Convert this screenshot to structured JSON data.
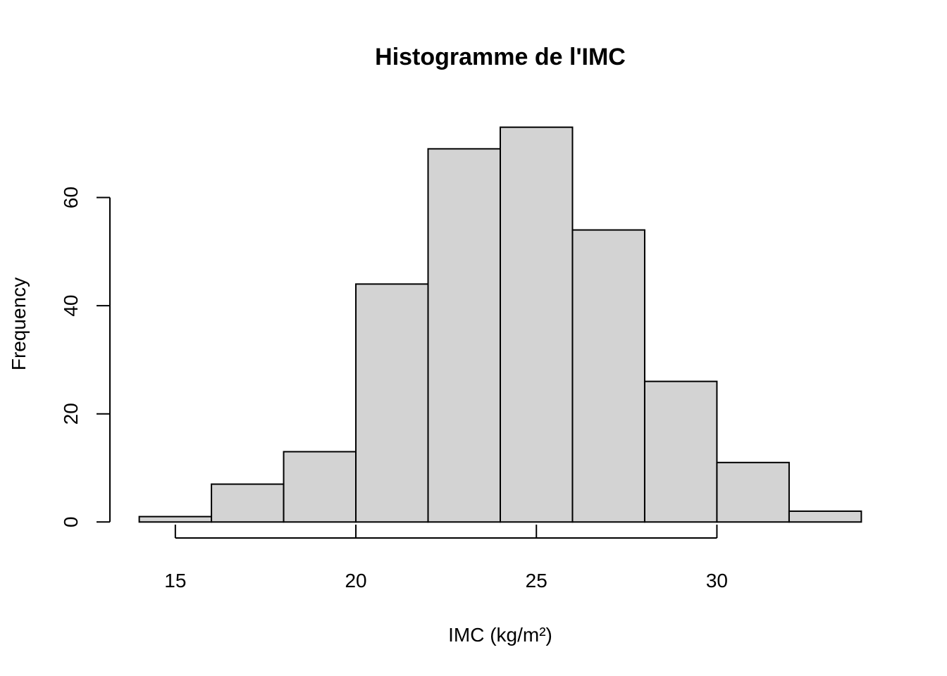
{
  "chart_data": {
    "type": "bar",
    "title": "Histogramme de l'IMC",
    "xlabel": "IMC (kg/m²)",
    "ylabel": "Frequency",
    "bins": [
      {
        "from": 14,
        "to": 16,
        "count": 1
      },
      {
        "from": 16,
        "to": 18,
        "count": 7
      },
      {
        "from": 18,
        "to": 20,
        "count": 13
      },
      {
        "from": 20,
        "to": 22,
        "count": 44
      },
      {
        "from": 22,
        "to": 24,
        "count": 69
      },
      {
        "from": 24,
        "to": 26,
        "count": 73
      },
      {
        "from": 26,
        "to": 28,
        "count": 54
      },
      {
        "from": 28,
        "to": 30,
        "count": 26
      },
      {
        "from": 30,
        "to": 32,
        "count": 11
      },
      {
        "from": 32,
        "to": 34,
        "count": 2
      }
    ],
    "x_ticks": [
      15,
      20,
      25,
      30
    ],
    "y_ticks": [
      0,
      20,
      40,
      60
    ],
    "xlim": [
      14,
      34
    ],
    "ylim": [
      0,
      73
    ],
    "grid": false,
    "bar_color": "#d3d3d3",
    "edge_color": "#000000"
  }
}
